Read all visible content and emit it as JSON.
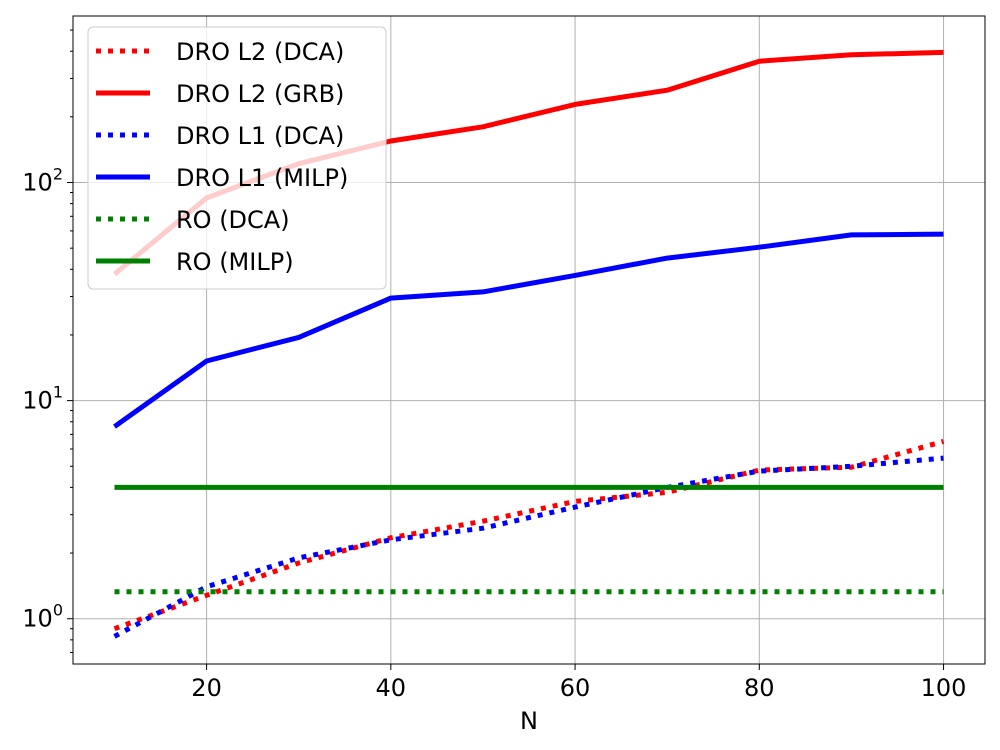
{
  "chart_data": {
    "type": "line",
    "title": "",
    "xlabel": "N",
    "ylabel": "",
    "yscale": "log",
    "xlim": [
      5.5,
      104.5
    ],
    "ylim": [
      0.62,
      580
    ],
    "x_ticks": [
      20,
      40,
      60,
      80,
      100
    ],
    "x_tick_labels": [
      "20",
      "40",
      "60",
      "80",
      "100"
    ],
    "y_ticks": [
      1,
      10,
      100
    ],
    "y_tick_labels": [
      {
        "base": "10",
        "exp": "0"
      },
      {
        "base": "10",
        "exp": "1"
      },
      {
        "base": "10",
        "exp": "2"
      }
    ],
    "grid": true,
    "legend_position": "top-left",
    "x": [
      10,
      20,
      30,
      40,
      50,
      60,
      70,
      80,
      90,
      100
    ],
    "series": [
      {
        "name": "DRO L2 (DCA)",
        "color": "#ff0000",
        "style": "dotted",
        "values": [
          0.9,
          1.28,
          1.8,
          2.35,
          2.8,
          3.45,
          3.8,
          4.8,
          4.95,
          6.5
        ]
      },
      {
        "name": "DRO L2 (GRB)",
        "color": "#ff0000",
        "style": "solid",
        "values": [
          38,
          85,
          122,
          155,
          180,
          228,
          265,
          360,
          385,
          395
        ]
      },
      {
        "name": "DRO L1 (DCA)",
        "color": "#0000ff",
        "style": "dotted",
        "values": [
          0.83,
          1.4,
          1.9,
          2.3,
          2.6,
          3.25,
          4.0,
          4.75,
          5.0,
          5.45
        ]
      },
      {
        "name": "DRO L1 (MILP)",
        "color": "#0000ff",
        "style": "solid",
        "values": [
          7.6,
          15.2,
          19.5,
          29.5,
          31.5,
          37.5,
          45,
          50.5,
          57.5,
          58
        ]
      },
      {
        "name": "RO (DCA)",
        "color": "#008000",
        "style": "dotted",
        "values": [
          1.33,
          1.33,
          1.33,
          1.33,
          1.33,
          1.33,
          1.33,
          1.33,
          1.33,
          1.33
        ]
      },
      {
        "name": "RO (MILP)",
        "color": "#008000",
        "style": "solid",
        "values": [
          4.0,
          4.0,
          4.0,
          4.0,
          4.0,
          4.0,
          4.0,
          4.0,
          4.0,
          4.0
        ]
      }
    ]
  }
}
